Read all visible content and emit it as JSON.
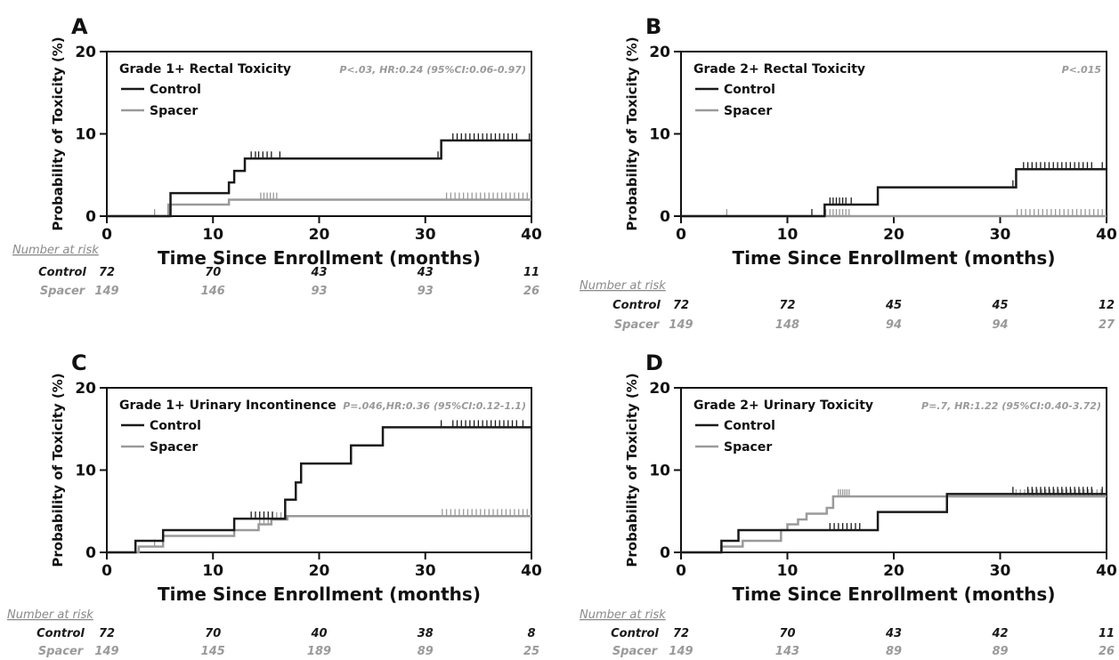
{
  "colors": {
    "control": "#1a1a1a",
    "spacer": "#9a9a9a",
    "axis": "#111111"
  },
  "chart_data": [
    {
      "type": "line",
      "panel": "A",
      "title": "Grade 1+ Rectal Toxicity",
      "stat": "P<.03, HR:0.24 (95%CI:0.06-0.97)",
      "xlabel": "Time Since Enrollment (months)",
      "ylabel": "Probability of Toxicity (%)",
      "xlim": [
        0,
        40
      ],
      "ylim": [
        0,
        20
      ],
      "xticks": [
        0,
        10,
        20,
        30,
        40
      ],
      "yticks": [
        0,
        10,
        20
      ],
      "legend_position": "top-left",
      "series": [
        {
          "name": "Control",
          "color": "#1a1a1a",
          "steps": [
            [
              0,
              0
            ],
            [
              6,
              2.8
            ],
            [
              10.5,
              2.8
            ],
            [
              11.5,
              4.1
            ],
            [
              12,
              5.5
            ],
            [
              13,
              7
            ],
            [
              31.5,
              7
            ],
            [
              31.5,
              9.2
            ],
            [
              40,
              9.2
            ]
          ],
          "censor": [
            13.6,
            14,
            14.3,
            14.7,
            15.1,
            15.5,
            16.3,
            31.2,
            32.6,
            33,
            33.4,
            33.8,
            34.2,
            34.6,
            35,
            35.4,
            35.8,
            36.2,
            36.6,
            37,
            37.4,
            37.8,
            38.2,
            38.6,
            39.8
          ]
        },
        {
          "name": "Spacer",
          "color": "#9a9a9a",
          "steps": [
            [
              0,
              0
            ],
            [
              5.8,
              1.4
            ],
            [
              11.5,
              2
            ],
            [
              40,
              2
            ]
          ],
          "censor": [
            4.5,
            14.5,
            14.8,
            15.1,
            15.4,
            15.7,
            16,
            32,
            32.4,
            32.8,
            33.2,
            33.6,
            34,
            34.4,
            34.8,
            35.2,
            35.6,
            36,
            36.4,
            36.8,
            37.2,
            37.6,
            38,
            38.4,
            38.8,
            39.2,
            39.6
          ]
        }
      ],
      "risk": {
        "header": "Number at risk",
        "rows": [
          {
            "label": "Control",
            "values": [
              "72",
              "70",
              "43",
              "43",
              "11"
            ]
          },
          {
            "label": "Spacer",
            "values": [
              "149",
              "146",
              "93",
              "93",
              "26"
            ]
          }
        ]
      }
    },
    {
      "type": "line",
      "panel": "B",
      "title": "Grade 2+ Rectal Toxicity",
      "stat": "P<.015",
      "xlabel": "Time Since Enrollment (months)",
      "ylabel": "Probability of Toxicity (%)",
      "xlim": [
        0,
        40
      ],
      "ylim": [
        0,
        20
      ],
      "xticks": [
        0,
        10,
        20,
        30,
        40
      ],
      "yticks": [
        0,
        10,
        20
      ],
      "legend_position": "top-left",
      "series": [
        {
          "name": "Control",
          "color": "#1a1a1a",
          "steps": [
            [
              0,
              0
            ],
            [
              13.5,
              1.4
            ],
            [
              18.5,
              3.5
            ],
            [
              31.5,
              5.7
            ],
            [
              40,
              5.7
            ]
          ],
          "censor": [
            12.3,
            14,
            14.3,
            14.6,
            14.9,
            15.2,
            15.5,
            16,
            31.2,
            32.2,
            32.6,
            33,
            33.4,
            33.8,
            34.2,
            34.6,
            35,
            35.4,
            35.8,
            36.2,
            36.6,
            37,
            37.4,
            37.8,
            38.2,
            38.6,
            39.6
          ]
        },
        {
          "name": "Spacer",
          "color": "#9a9a9a",
          "steps": [
            [
              0,
              0
            ],
            [
              40,
              0
            ]
          ],
          "censor": [
            4.3,
            13.6,
            14,
            14.3,
            14.6,
            14.9,
            15.2,
            15.5,
            15.8,
            31.6,
            32,
            32.4,
            32.8,
            33.2,
            33.6,
            34,
            34.4,
            34.8,
            35.2,
            35.6,
            36,
            36.4,
            36.8,
            37.2,
            37.6,
            38,
            38.4,
            38.8,
            39.2,
            39.6
          ]
        }
      ],
      "risk": {
        "header": "Number at risk",
        "rows": [
          {
            "label": "Control",
            "values": [
              "72",
              "72",
              "45",
              "45",
              "12"
            ]
          },
          {
            "label": "Spacer",
            "values": [
              "149",
              "148",
              "94",
              "94",
              "27"
            ]
          }
        ]
      }
    },
    {
      "type": "line",
      "panel": "C",
      "title": "Grade 1+ Urinary Incontinence",
      "stat": "P=.046,HR:0.36 (95%CI:0.12-1.1)",
      "xlabel": "Time Since Enrollment (months)",
      "ylabel": "Probability of Toxicity (%)",
      "xlim": [
        0,
        40
      ],
      "ylim": [
        0,
        20
      ],
      "xticks": [
        0,
        10,
        20,
        30,
        40
      ],
      "yticks": [
        0,
        10,
        20
      ],
      "legend_position": "top-left",
      "series": [
        {
          "name": "Control",
          "color": "#1a1a1a",
          "steps": [
            [
              0,
              0
            ],
            [
              2.7,
              1.4
            ],
            [
              5.3,
              2.7
            ],
            [
              12,
              4.1
            ],
            [
              16.8,
              6.4
            ],
            [
              17.8,
              8.5
            ],
            [
              18.3,
              10.8
            ],
            [
              23,
              13
            ],
            [
              26,
              15.2
            ],
            [
              40,
              15.2
            ]
          ],
          "censor": [
            13.6,
            14,
            14.4,
            14.8,
            15.2,
            15.6,
            31.5,
            32.6,
            33,
            33.4,
            33.8,
            34.2,
            34.6,
            35,
            35.4,
            35.8,
            36.2,
            36.6,
            37,
            37.4,
            37.8,
            38.2,
            38.6,
            39.2
          ]
        },
        {
          "name": "Spacer",
          "color": "#9a9a9a",
          "steps": [
            [
              0,
              0
            ],
            [
              3,
              0.7
            ],
            [
              5.3,
              2
            ],
            [
              12,
              2.7
            ],
            [
              14.3,
              3.4
            ],
            [
              15.5,
              4
            ],
            [
              17,
              4.4
            ],
            [
              40,
              4.4
            ]
          ],
          "censor": [
            4.5,
            14.4,
            14.8,
            15.2,
            15.6,
            16,
            16.4,
            31.6,
            32,
            32.4,
            32.8,
            33.2,
            33.6,
            34,
            34.4,
            34.8,
            35.2,
            35.6,
            36,
            36.4,
            36.8,
            37.2,
            37.6,
            38,
            38.4,
            38.8,
            39.2,
            39.6
          ]
        }
      ],
      "risk": {
        "header": "Number at risk",
        "rows": [
          {
            "label": "Control",
            "values": [
              "72",
              "70",
              "40",
              "38",
              "8"
            ]
          },
          {
            "label": "Spacer",
            "values": [
              "149",
              "145",
              "189",
              "89",
              "25"
            ]
          }
        ]
      }
    },
    {
      "type": "line",
      "panel": "D",
      "title": "Grade 2+ Urinary Toxicity",
      "stat": "P=.7, HR:1.22 (95%CI:0.40-3.72)",
      "xlabel": "Time Since Enrollment (months)",
      "ylabel": "Probability of Toxicity (%)",
      "xlim": [
        0,
        40
      ],
      "ylim": [
        0,
        20
      ],
      "xticks": [
        0,
        10,
        20,
        30,
        40
      ],
      "yticks": [
        0,
        10,
        20
      ],
      "legend_position": "top-left",
      "series": [
        {
          "name": "Control",
          "color": "#1a1a1a",
          "steps": [
            [
              0,
              0
            ],
            [
              3.8,
              1.4
            ],
            [
              5.4,
              2.7
            ],
            [
              18.5,
              4.9
            ],
            [
              25,
              7.1
            ],
            [
              40,
              7.1
            ]
          ],
          "censor": [
            14,
            14.4,
            14.8,
            15.2,
            15.6,
            16,
            16.4,
            16.8,
            31.2,
            32.6,
            33,
            33.4,
            33.8,
            34.2,
            34.6,
            35,
            35.4,
            35.8,
            36.2,
            36.6,
            37,
            37.4,
            37.8,
            38.2,
            38.6,
            39.6
          ]
        },
        {
          "name": "Spacer",
          "color": "#9a9a9a",
          "steps": [
            [
              0,
              0
            ],
            [
              3.8,
              0.7
            ],
            [
              5.8,
              1.4
            ],
            [
              9.4,
              2.7
            ],
            [
              10,
              3.4
            ],
            [
              11,
              4
            ],
            [
              11.8,
              4.7
            ],
            [
              13.7,
              5.4
            ],
            [
              14.3,
              6.8
            ],
            [
              40,
              6.8
            ]
          ],
          "censor": [
            14.8,
            15,
            15.2,
            15.4,
            15.6,
            15.8,
            31.5,
            31.9,
            32.3,
            32.7,
            33.1,
            33.5,
            33.9,
            34.3,
            34.7,
            35.1,
            35.5,
            35.9,
            36.3,
            36.7,
            37.1,
            37.5,
            37.9,
            38.3,
            38.7,
            39.1,
            39.5
          ]
        }
      ],
      "risk": {
        "header": "Number at risk",
        "rows": [
          {
            "label": "Control",
            "values": [
              "72",
              "70",
              "43",
              "42",
              "11"
            ]
          },
          {
            "label": "Spacer",
            "values": [
              "149",
              "143",
              "89",
              "89",
              "26"
            ]
          }
        ]
      }
    }
  ]
}
